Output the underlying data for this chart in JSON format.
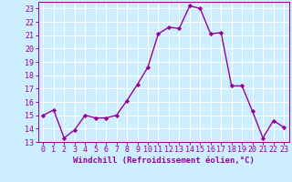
{
  "x": [
    0,
    1,
    2,
    3,
    4,
    5,
    6,
    7,
    8,
    9,
    10,
    11,
    12,
    13,
    14,
    15,
    16,
    17,
    18,
    19,
    20,
    21,
    22,
    23
  ],
  "y": [
    15,
    15.4,
    13.3,
    13.9,
    15,
    14.8,
    14.8,
    15,
    16.1,
    17.3,
    18.6,
    21.1,
    21.6,
    21.5,
    23.2,
    23.0,
    21.1,
    21.2,
    17.2,
    17.2,
    15.3,
    13.3,
    14.6,
    14.1
  ],
  "line_color": "#990099",
  "marker": "D",
  "markersize": 2.2,
  "linewidth": 1.0,
  "background_color": "#cceeff",
  "grid_color": "#ffffff",
  "xlabel": "Windchill (Refroidissement éolien,°C)",
  "xlabel_fontsize": 6.5,
  "tick_fontsize": 6.0,
  "ylim": [
    13,
    23.5
  ],
  "xlim": [
    -0.5,
    23.5
  ],
  "yticks": [
    13,
    14,
    15,
    16,
    17,
    18,
    19,
    20,
    21,
    22,
    23
  ],
  "xticks": [
    0,
    1,
    2,
    3,
    4,
    5,
    6,
    7,
    8,
    9,
    10,
    11,
    12,
    13,
    14,
    15,
    16,
    17,
    18,
    19,
    20,
    21,
    22,
    23
  ]
}
